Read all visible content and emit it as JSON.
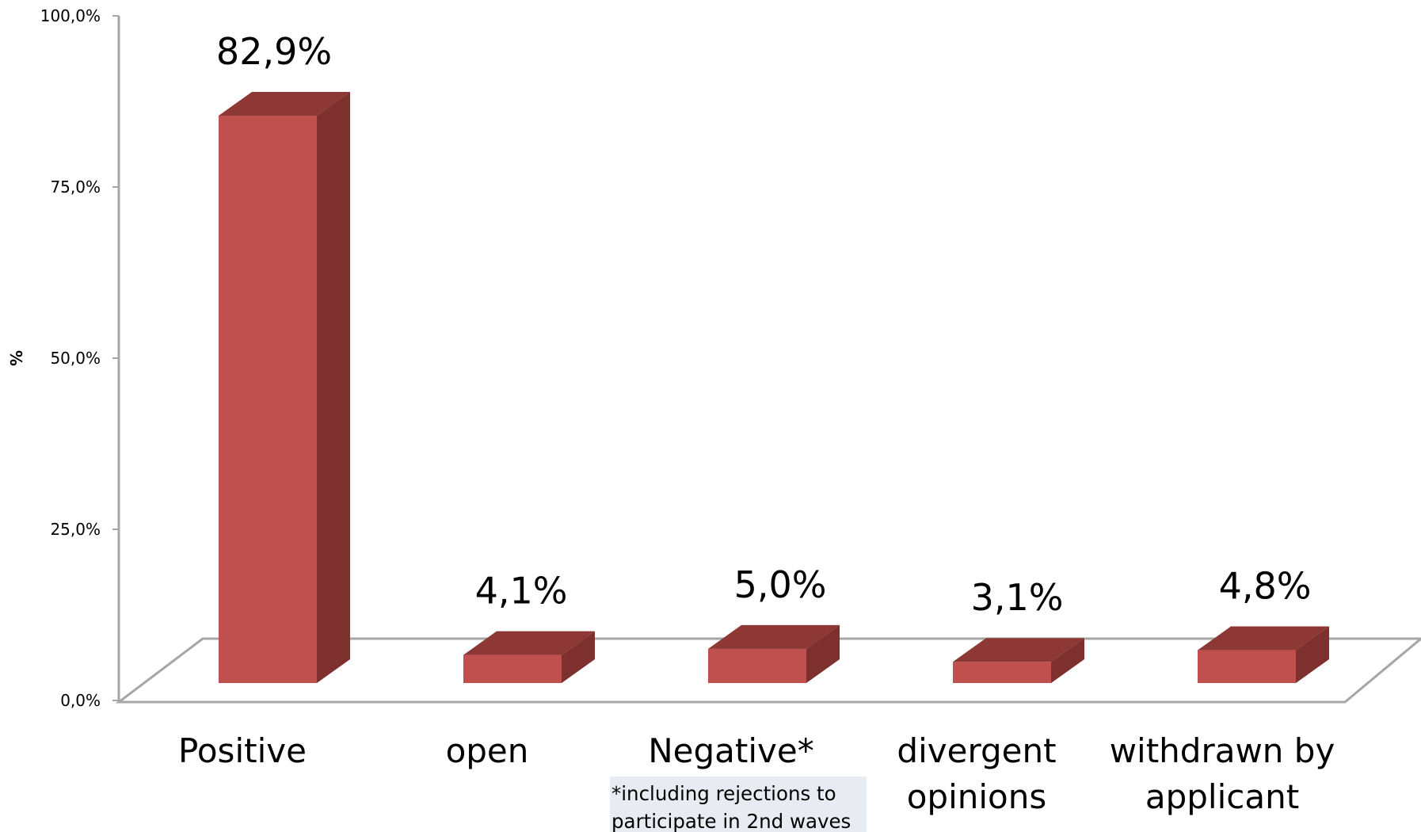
{
  "chart_data": {
    "type": "bar",
    "style": "3d",
    "categories": [
      "Positive",
      "open",
      "Negative*",
      "divergent opinions",
      "withdrawn by applicant"
    ],
    "values": [
      82.9,
      4.1,
      5.0,
      3.1,
      4.8
    ],
    "value_labels": [
      "82,9%",
      "4,1%",
      "5,0%",
      "3,1%",
      "4,8%"
    ],
    "ylabel": "%",
    "ylim": [
      0,
      100
    ],
    "yticks": [
      0,
      25,
      50,
      75,
      100
    ],
    "ytick_labels": [
      "0,0%",
      "25,0%",
      "50,0%",
      "75,0%",
      "100,0%"
    ],
    "grid": false,
    "legend": "none",
    "annotation": "*including rejections to participate in 2nd waves",
    "colors": {
      "bar_front": "#c0504d",
      "bar_top": "#8e3835",
      "bar_side": "#7d302e",
      "axis": "#a6a6a6"
    }
  }
}
